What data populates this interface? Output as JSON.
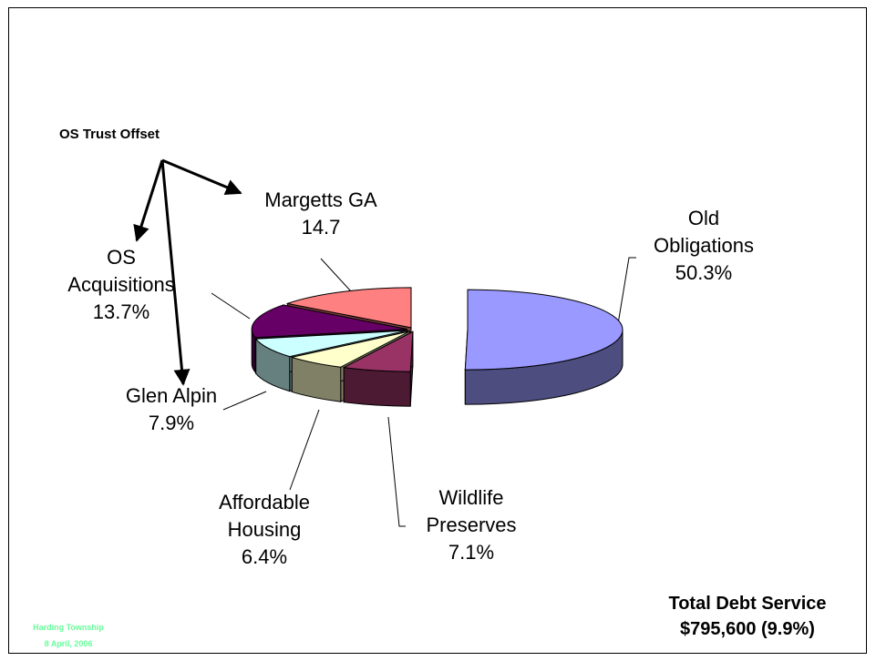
{
  "chart_data": {
    "type": "pie",
    "categories": [
      "Old Obligations",
      "Wildlife Preserves",
      "Affordable Housing",
      "Glen Alpin",
      "OS Acquisitions",
      "Margetts GA"
    ],
    "values": [
      50.3,
      7.1,
      6.4,
      7.9,
      13.7,
      14.7
    ],
    "value_labels": [
      "50.3%",
      "7.1%",
      "6.4%",
      "7.9%",
      "13.7%",
      "14.7"
    ],
    "colors": [
      "#9999ff",
      "#993366",
      "#ffffcc",
      "#ccffff",
      "#660066",
      "#ff8080"
    ],
    "annotations": [
      "OS Trust Offset",
      "Total Debt Service",
      "$795,600 (9.9%)"
    ],
    "footer": [
      "Harding Township",
      "8 April, 2006"
    ]
  }
}
